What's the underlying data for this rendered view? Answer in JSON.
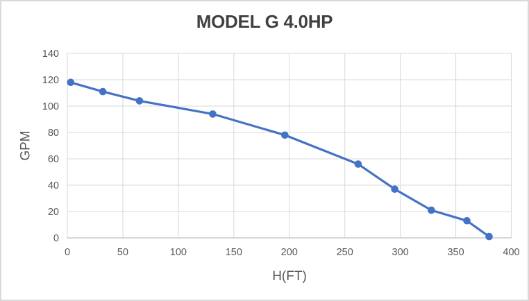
{
  "chart_data": {
    "type": "line",
    "title": "MODEL G 4.0HP",
    "xlabel": "H(FT)",
    "ylabel": "GPM",
    "points": [
      [
        3,
        118
      ],
      [
        32,
        111
      ],
      [
        65,
        104
      ],
      [
        131,
        94
      ],
      [
        196,
        78
      ],
      [
        262,
        56
      ],
      [
        295,
        37
      ],
      [
        328,
        21
      ],
      [
        360,
        13
      ],
      [
        380,
        1
      ]
    ],
    "xlim": [
      0,
      400
    ],
    "ylim": [
      0,
      140
    ],
    "xticks": [
      0,
      50,
      100,
      150,
      200,
      250,
      300,
      350,
      400
    ],
    "yticks": [
      0,
      20,
      40,
      60,
      80,
      100,
      120,
      140
    ],
    "grid": true,
    "legend": false,
    "line_color": "#4472C4",
    "marker": "circle",
    "grid_color": "#D9D9D9",
    "axis_color": "#BFBFBF",
    "tick_label_color": "#595959",
    "title_color": "#404040",
    "frame_border_color": "#D9D9D9"
  }
}
